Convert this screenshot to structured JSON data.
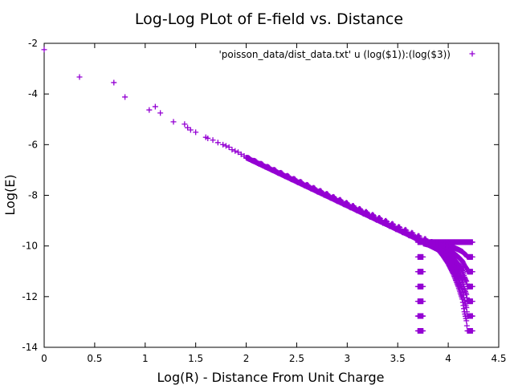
{
  "chart_data": {
    "type": "scatter",
    "title": "Log-Log PLot of E-field vs. Distance",
    "xlabel": "Log(R) - Distance From Unit Charge",
    "ylabel": "Log(E)",
    "xlim": [
      0,
      4.5
    ],
    "ylim": [
      -14,
      -2
    ],
    "xticks": [
      0,
      0.5,
      1,
      1.5,
      2,
      2.5,
      3,
      3.5,
      4,
      4.5
    ],
    "yticks": [
      -14,
      -12,
      -10,
      -8,
      -6,
      -4,
      -2
    ],
    "xtick_labels": [
      "0",
      "0.5",
      "1",
      "1.5",
      "2",
      "2.5",
      "3",
      "3.5",
      "4",
      "4.5"
    ],
    "ytick_labels": [
      "-14",
      "-12",
      "-10",
      "-8",
      "-6",
      "-4",
      "-2"
    ],
    "grid": false,
    "legend": {
      "placement": "top-right",
      "entries": [
        "'poisson_data/dist_data.txt' u (log($1)):(log($3))"
      ]
    },
    "marker_color": "#9400d3",
    "marker": "plus",
    "series": [
      {
        "points": [
          [
            0.0,
            -2.25
          ],
          [
            0.35,
            -3.33
          ],
          [
            0.69,
            -3.55
          ],
          [
            0.8,
            -4.12
          ],
          [
            1.04,
            -4.63
          ],
          [
            1.1,
            -4.5
          ],
          [
            1.15,
            -4.75
          ],
          [
            1.28,
            -5.1
          ],
          [
            1.39,
            -5.19
          ],
          [
            1.42,
            -5.33
          ],
          [
            1.45,
            -5.42
          ],
          [
            1.5,
            -5.51
          ],
          [
            1.6,
            -5.71
          ],
          [
            1.62,
            -5.75
          ],
          [
            1.67,
            -5.82
          ],
          [
            1.72,
            -5.92
          ],
          [
            1.77,
            -6.0
          ],
          [
            1.8,
            -6.05
          ],
          [
            1.83,
            -6.1
          ],
          [
            1.86,
            -6.2
          ],
          [
            1.89,
            -6.25
          ],
          [
            1.92,
            -6.3
          ],
          [
            1.95,
            -6.38
          ],
          [
            1.98,
            -6.45
          ]
        ],
        "dense_band": {
          "x_range": [
            2.0,
            4.24
          ],
          "main_line": {
            "x0": 2.0,
            "y0": -6.5,
            "x1": 3.85,
            "y1": -9.95
          },
          "tail": [
            [
              3.8,
              -9.9
            ],
            [
              3.85,
              -9.95
            ],
            [
              3.9,
              -10.05
            ],
            [
              3.95,
              -10.15
            ],
            [
              4.0,
              -10.4
            ],
            [
              4.05,
              -10.7
            ],
            [
              4.1,
              -11.1
            ],
            [
              4.15,
              -11.6
            ],
            [
              4.19,
              -12.1
            ],
            [
              4.21,
              -12.6
            ],
            [
              4.23,
              -12.95
            ],
            [
              4.24,
              -13.35
            ]
          ]
        }
      }
    ]
  }
}
